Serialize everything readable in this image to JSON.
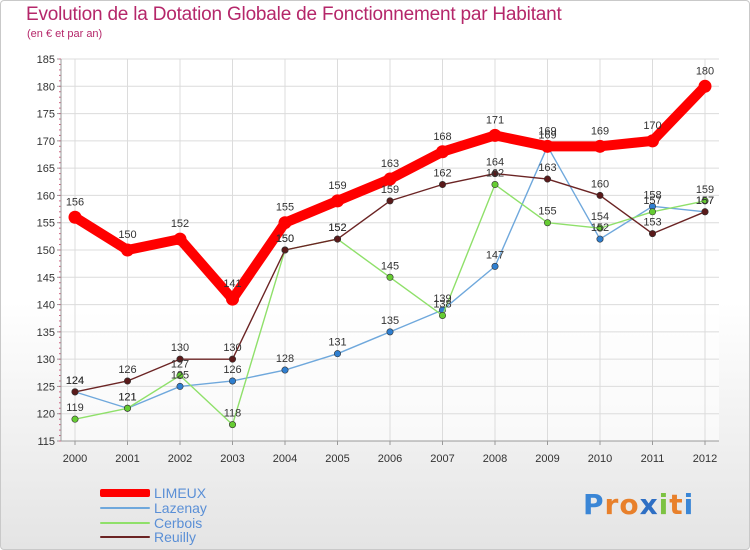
{
  "title": "Evolution de la Dotation Globale de Fonctionnement par Habitant",
  "subtitle": "(en € et par an)",
  "logo": {
    "text": "Proxiti",
    "letters": [
      "P",
      "r",
      "o",
      "x",
      "i",
      "t",
      "i"
    ],
    "colors": [
      "#3a86d6",
      "#e8802b",
      "#e8802b",
      "#2e6fc4",
      "#7cc242",
      "#e8802b",
      "#3a86d6"
    ]
  },
  "chart_data": {
    "type": "line",
    "title": "Evolution de la Dotation Globale de Fonctionnement par Habitant",
    "ylabel": "(en € et par an)",
    "xlabel": "",
    "categories": [
      "2000",
      "2001",
      "2002",
      "2003",
      "2004",
      "2005",
      "2006",
      "2007",
      "2008",
      "2009",
      "2010",
      "2011",
      "2012"
    ],
    "ylim": [
      115,
      185
    ],
    "yticks": [
      115,
      120,
      125,
      130,
      135,
      140,
      145,
      150,
      155,
      160,
      165,
      170,
      175,
      180,
      185
    ],
    "grid": true,
    "legend_position": "bottom-left",
    "series": [
      {
        "name": "LIMEUX",
        "color": "#ff0000",
        "point_color": "#ff0000",
        "emphasis": true,
        "values": [
          156,
          150,
          152,
          141,
          155,
          159,
          163,
          168,
          171,
          169,
          169,
          170,
          180
        ]
      },
      {
        "name": "Lazenay",
        "color": "#6fa8dc",
        "point_color": "#2f7fd0",
        "emphasis": false,
        "values": [
          124,
          121,
          125,
          126,
          128,
          131,
          135,
          139,
          147,
          169,
          152,
          158,
          157
        ]
      },
      {
        "name": "Cerbois",
        "color": "#8fe06a",
        "point_color": "#66cc33",
        "emphasis": false,
        "values": [
          119,
          121,
          127,
          118,
          150,
          152,
          145,
          138,
          162,
          155,
          154,
          157,
          159
        ]
      },
      {
        "name": "Reuilly",
        "color": "#6b2424",
        "point_color": "#5a1a1a",
        "emphasis": false,
        "values": [
          124,
          126,
          130,
          130,
          150,
          152,
          159,
          162,
          164,
          163,
          160,
          153,
          157
        ]
      }
    ]
  }
}
